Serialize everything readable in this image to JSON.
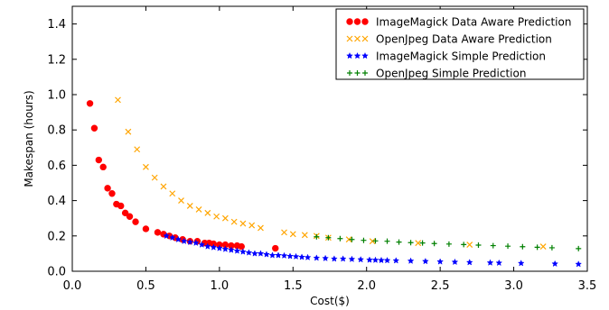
{
  "chart_data": {
    "type": "scatter",
    "title": "",
    "xlabel": "Cost($)",
    "ylabel": "Makespan (hours)",
    "xlim": [
      0.0,
      3.5
    ],
    "ylim": [
      0.0,
      1.5
    ],
    "xticks": [
      "0.0",
      "0.5",
      "1.0",
      "1.5",
      "2.0",
      "2.5",
      "3.0",
      "3.5"
    ],
    "yticks": [
      "0.0",
      "0.2",
      "0.4",
      "0.6",
      "0.8",
      "1.0",
      "1.2",
      "1.4"
    ],
    "grid": false,
    "legend_position": "top-right",
    "series": [
      {
        "name": "ImageMagick Data Aware Prediction",
        "marker": "circle",
        "color": "#ff0000",
        "x": [
          0.12,
          0.15,
          0.18,
          0.21,
          0.24,
          0.27,
          0.3,
          0.33,
          0.36,
          0.39,
          0.43,
          0.5,
          0.58,
          0.62,
          0.66,
          0.7,
          0.75,
          0.8,
          0.85,
          0.9,
          0.93,
          0.96,
          1.0,
          1.04,
          1.08,
          1.12,
          1.15,
          1.38
        ],
        "y": [
          0.95,
          0.81,
          0.63,
          0.59,
          0.47,
          0.44,
          0.38,
          0.37,
          0.33,
          0.31,
          0.28,
          0.24,
          0.22,
          0.21,
          0.2,
          0.19,
          0.18,
          0.17,
          0.17,
          0.16,
          0.16,
          0.155,
          0.15,
          0.15,
          0.145,
          0.145,
          0.14,
          0.13
        ]
      },
      {
        "name": "OpenJpeg Data Aware Prediction",
        "marker": "x",
        "color": "#ffa500",
        "x": [
          0.31,
          0.38,
          0.44,
          0.5,
          0.56,
          0.62,
          0.68,
          0.74,
          0.8,
          0.86,
          0.92,
          0.98,
          1.04,
          1.1,
          1.16,
          1.22,
          1.28,
          1.44,
          1.5,
          1.58,
          1.66,
          1.74,
          1.88,
          2.04,
          2.35,
          2.7,
          3.2
        ],
        "y": [
          0.97,
          0.79,
          0.69,
          0.59,
          0.53,
          0.48,
          0.44,
          0.4,
          0.37,
          0.35,
          0.33,
          0.31,
          0.3,
          0.28,
          0.27,
          0.26,
          0.245,
          0.22,
          0.21,
          0.205,
          0.2,
          0.19,
          0.18,
          0.17,
          0.16,
          0.15,
          0.14
        ]
      },
      {
        "name": "ImageMagick Simple Prediction",
        "marker": "star",
        "color": "#0000ff",
        "x": [
          0.64,
          0.68,
          0.72,
          0.76,
          0.8,
          0.84,
          0.88,
          0.92,
          0.96,
          1.0,
          1.04,
          1.08,
          1.12,
          1.16,
          1.2,
          1.24,
          1.28,
          1.32,
          1.36,
          1.4,
          1.44,
          1.48,
          1.52,
          1.56,
          1.6,
          1.66,
          1.72,
          1.78,
          1.84,
          1.9,
          1.96,
          2.02,
          2.06,
          2.1,
          2.14,
          2.2,
          2.3,
          2.4,
          2.5,
          2.6,
          2.7,
          2.84,
          2.9,
          3.05,
          3.28,
          3.44
        ],
        "y": [
          0.2,
          0.19,
          0.18,
          0.17,
          0.165,
          0.16,
          0.15,
          0.14,
          0.135,
          0.13,
          0.125,
          0.12,
          0.115,
          0.11,
          0.105,
          0.1,
          0.1,
          0.095,
          0.09,
          0.09,
          0.088,
          0.085,
          0.083,
          0.08,
          0.078,
          0.075,
          0.073,
          0.07,
          0.07,
          0.068,
          0.066,
          0.064,
          0.063,
          0.062,
          0.061,
          0.06,
          0.058,
          0.056,
          0.054,
          0.052,
          0.05,
          0.048,
          0.047,
          0.045,
          0.042,
          0.04
        ]
      },
      {
        "name": "OpenJpeg Simple Prediction",
        "marker": "plus",
        "color": "#008000",
        "x": [
          1.66,
          1.74,
          1.82,
          1.9,
          1.98,
          2.06,
          2.14,
          2.22,
          2.3,
          2.38,
          2.46,
          2.56,
          2.66,
          2.76,
          2.86,
          2.96,
          3.06,
          3.16,
          3.26,
          3.44
        ],
        "y": [
          0.195,
          0.19,
          0.185,
          0.18,
          0.175,
          0.172,
          0.17,
          0.165,
          0.162,
          0.16,
          0.157,
          0.154,
          0.151,
          0.148,
          0.145,
          0.142,
          0.139,
          0.136,
          0.133,
          0.128
        ]
      }
    ]
  }
}
